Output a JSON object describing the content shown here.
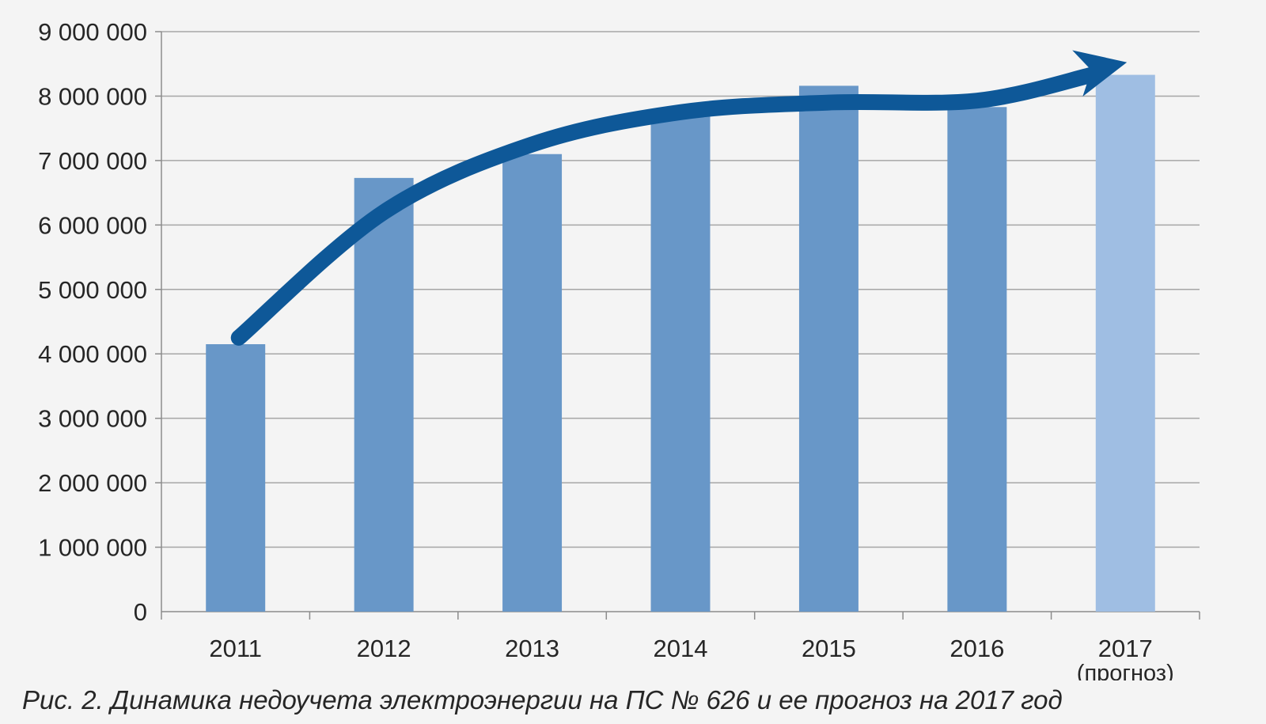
{
  "caption": "Рис. 2. Динамика недоучета электроэнергии на ПС № 626 и ее прогноз на 2017 год",
  "chart_data": {
    "type": "bar",
    "title": "",
    "xlabel": "",
    "ylabel": "",
    "categories": [
      "2011",
      "2012",
      "2013",
      "2014",
      "2015",
      "2016",
      "2017"
    ],
    "category_sublabels": [
      "",
      "",
      "",
      "",
      "",
      "",
      "(прогноз)"
    ],
    "values": [
      4150000,
      6730000,
      7100000,
      7780000,
      8160000,
      7830000,
      8330000
    ],
    "ylim": [
      0,
      9000000
    ],
    "yticks": [
      0,
      1000000,
      2000000,
      3000000,
      4000000,
      5000000,
      6000000,
      7000000,
      8000000,
      9000000
    ],
    "ytick_labels": [
      "0",
      "1 000 000",
      "2 000 000",
      "3 000 000",
      "4 000 000",
      "5 000 000",
      "6 000 000",
      "7 000 000",
      "8 000 000",
      "9 000 000"
    ],
    "grid": true,
    "legend": "none",
    "bar_color": "#6897c8",
    "forecast_bar_color": "#9fbee3",
    "trend_arrow_color": "#0e5898",
    "trend_arrow_values": [
      4250000,
      6200000,
      7250000,
      7750000,
      7900000,
      7930000,
      8330000
    ]
  }
}
